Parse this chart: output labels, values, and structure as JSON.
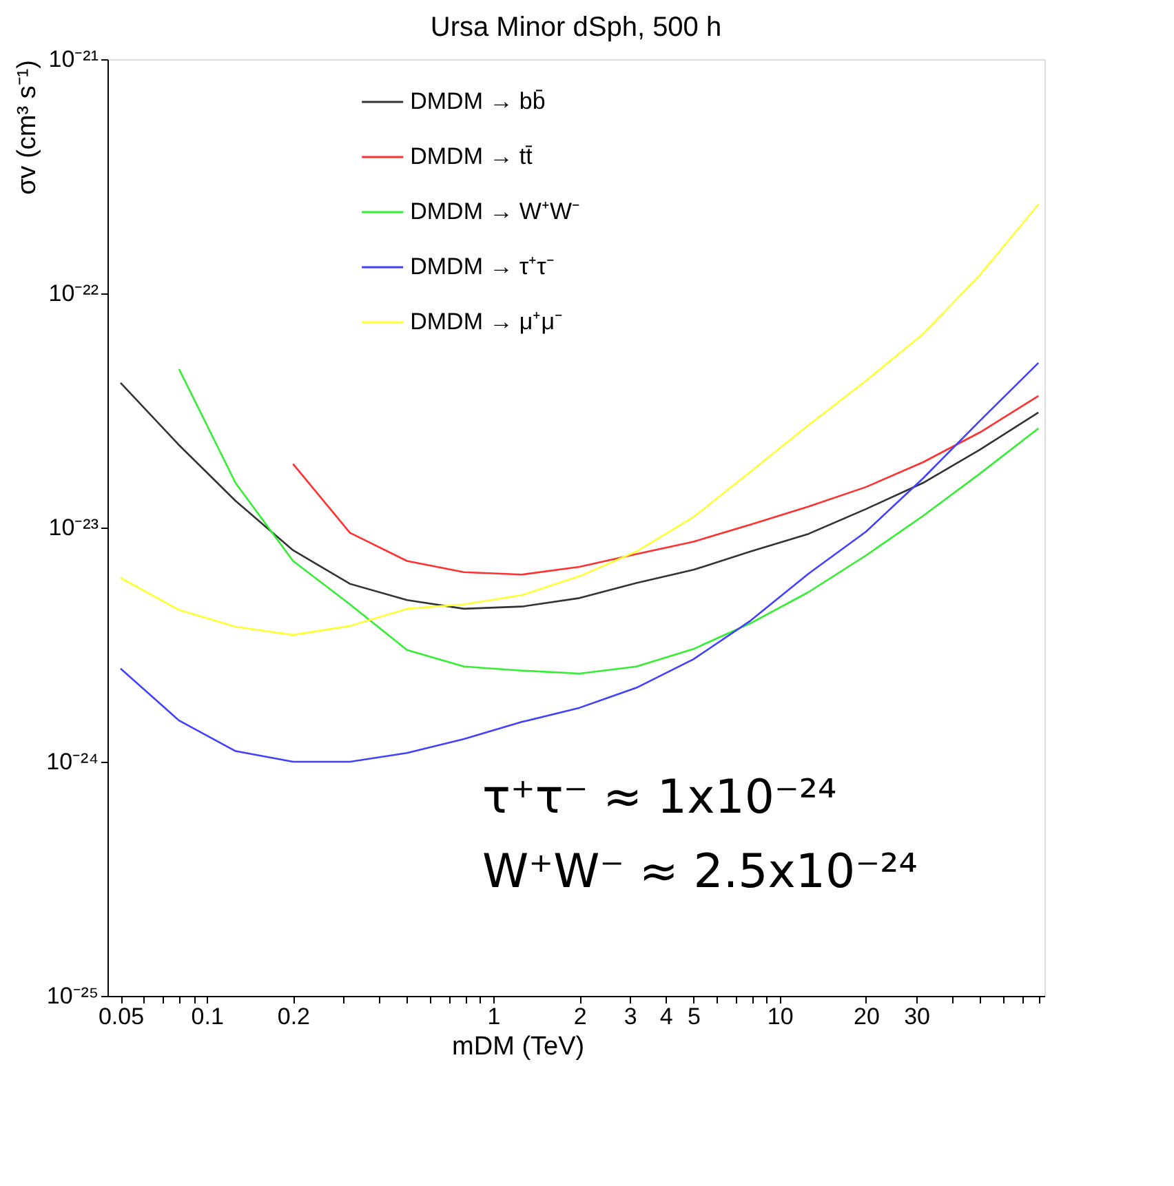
{
  "chart_data": {
    "type": "line",
    "title": "Ursa Minor dSph, 500 h",
    "xlabel": "mDM (TeV)",
    "ylabel": "σv (cm³ s⁻¹)",
    "log": "xy",
    "grid": false,
    "legend": "top",
    "marker": "none",
    "line_style": "solid",
    "x": [
      0.05,
      0.08,
      0.126,
      0.2,
      0.316,
      0.5,
      0.79,
      1.26,
      2,
      3.16,
      5,
      7.9,
      12.6,
      20,
      31.6,
      50,
      80
    ],
    "series": [
      {
        "name": "DMDM → bb̄",
        "color": "#333333",
        "values": [
          4.15e-23,
          2.25e-23,
          1.3e-23,
          8e-24,
          5.75e-24,
          4.9e-24,
          4.5e-24,
          4.6e-24,
          5e-24,
          5.8e-24,
          6.6e-24,
          7.9e-24,
          9.4e-24,
          1.2e-23,
          1.55e-23,
          2.15e-23,
          3.1e-23
        ]
      },
      {
        "name": "DMDM → tt̄",
        "color": "#ff3030",
        "values": [
          null,
          null,
          null,
          1.87e-23,
          9.5e-24,
          7.2e-24,
          6.45e-24,
          6.3e-24,
          6.8e-24,
          7.7e-24,
          8.7e-24,
          1.03e-23,
          1.23e-23,
          1.49e-23,
          1.9e-23,
          2.55e-23,
          3.65e-23
        ]
      },
      {
        "name": "DMDM → W⁺W⁻",
        "color": "#33ee33",
        "values": [
          null,
          4.75e-23,
          1.55e-23,
          7.2e-24,
          4.7e-24,
          3e-24,
          2.55e-24,
          2.45e-24,
          2.38e-24,
          2.55e-24,
          3.03e-24,
          3.9e-24,
          5.3e-24,
          7.6e-24,
          1.12e-23,
          1.7e-23,
          2.65e-23
        ]
      },
      {
        "name": "DMDM → τ⁺τ⁻",
        "color": "#4040ff",
        "values": [
          2.5e-24,
          1.5e-24,
          1.11e-24,
          1e-24,
          1e-24,
          1.09e-24,
          1.25e-24,
          1.48e-24,
          1.7e-24,
          2.07e-24,
          2.74e-24,
          4e-24,
          6.35e-24,
          9.6e-24,
          1.62e-23,
          2.86e-23,
          5.05e-23
        ]
      },
      {
        "name": "DMDM → μ⁺μ⁻",
        "color": "#ffff33",
        "values": [
          6.1e-24,
          4.45e-24,
          3.77e-24,
          3.48e-24,
          3.8e-24,
          4.5e-24,
          4.7e-24,
          5.15e-24,
          6.2e-24,
          7.9e-24,
          1.11e-23,
          1.73e-23,
          2.74e-23,
          4.24e-23,
          6.7e-23,
          1.2e-22,
          2.4e-22
        ]
      }
    ],
    "xlim": [
      0.045,
      84
    ],
    "ylim": [
      1e-25,
      1e-21
    ],
    "xticks": [
      0.05,
      {
        "value": 0.06,
        "label": null
      },
      {
        "value": 0.07,
        "label": null
      },
      {
        "value": 0.08,
        "label": null
      },
      {
        "value": 0.09,
        "label": null
      },
      0.1,
      0.2,
      {
        "value": 0.3,
        "label": null
      },
      {
        "value": 0.4,
        "label": null
      },
      {
        "value": 0.5,
        "label": null
      },
      {
        "value": 0.6,
        "label": null
      },
      {
        "value": 0.7,
        "label": null
      },
      {
        "value": 0.8,
        "label": null
      },
      {
        "value": 0.9,
        "label": null
      },
      1,
      2,
      3,
      4,
      5,
      {
        "value": 6,
        "label": null
      },
      {
        "value": 7,
        "label": null
      },
      {
        "value": 8,
        "label": null
      },
      {
        "value": 9,
        "label": null
      },
      10,
      20,
      30,
      {
        "value": 40,
        "label": null
      },
      {
        "value": 50,
        "label": null
      },
      {
        "value": 60,
        "label": null
      },
      {
        "value": 70,
        "label": null
      },
      {
        "value": 80,
        "label": null
      }
    ],
    "yticks": [
      {
        "value": 1e-25,
        "label": "10⁻²⁵"
      },
      {
        "value": 1e-24,
        "label": "10⁻²⁴"
      },
      {
        "value": 1e-23,
        "label": "10⁻²³"
      },
      {
        "value": 1e-22,
        "label": "10⁻²²"
      },
      {
        "value": 1e-21,
        "label": "10⁻²¹"
      }
    ],
    "annotations": [
      "τ⁺τ⁻ ≈ 1x10⁻²⁴",
      "W⁺W⁻ ≈ 2.5x10⁻²⁴"
    ]
  }
}
